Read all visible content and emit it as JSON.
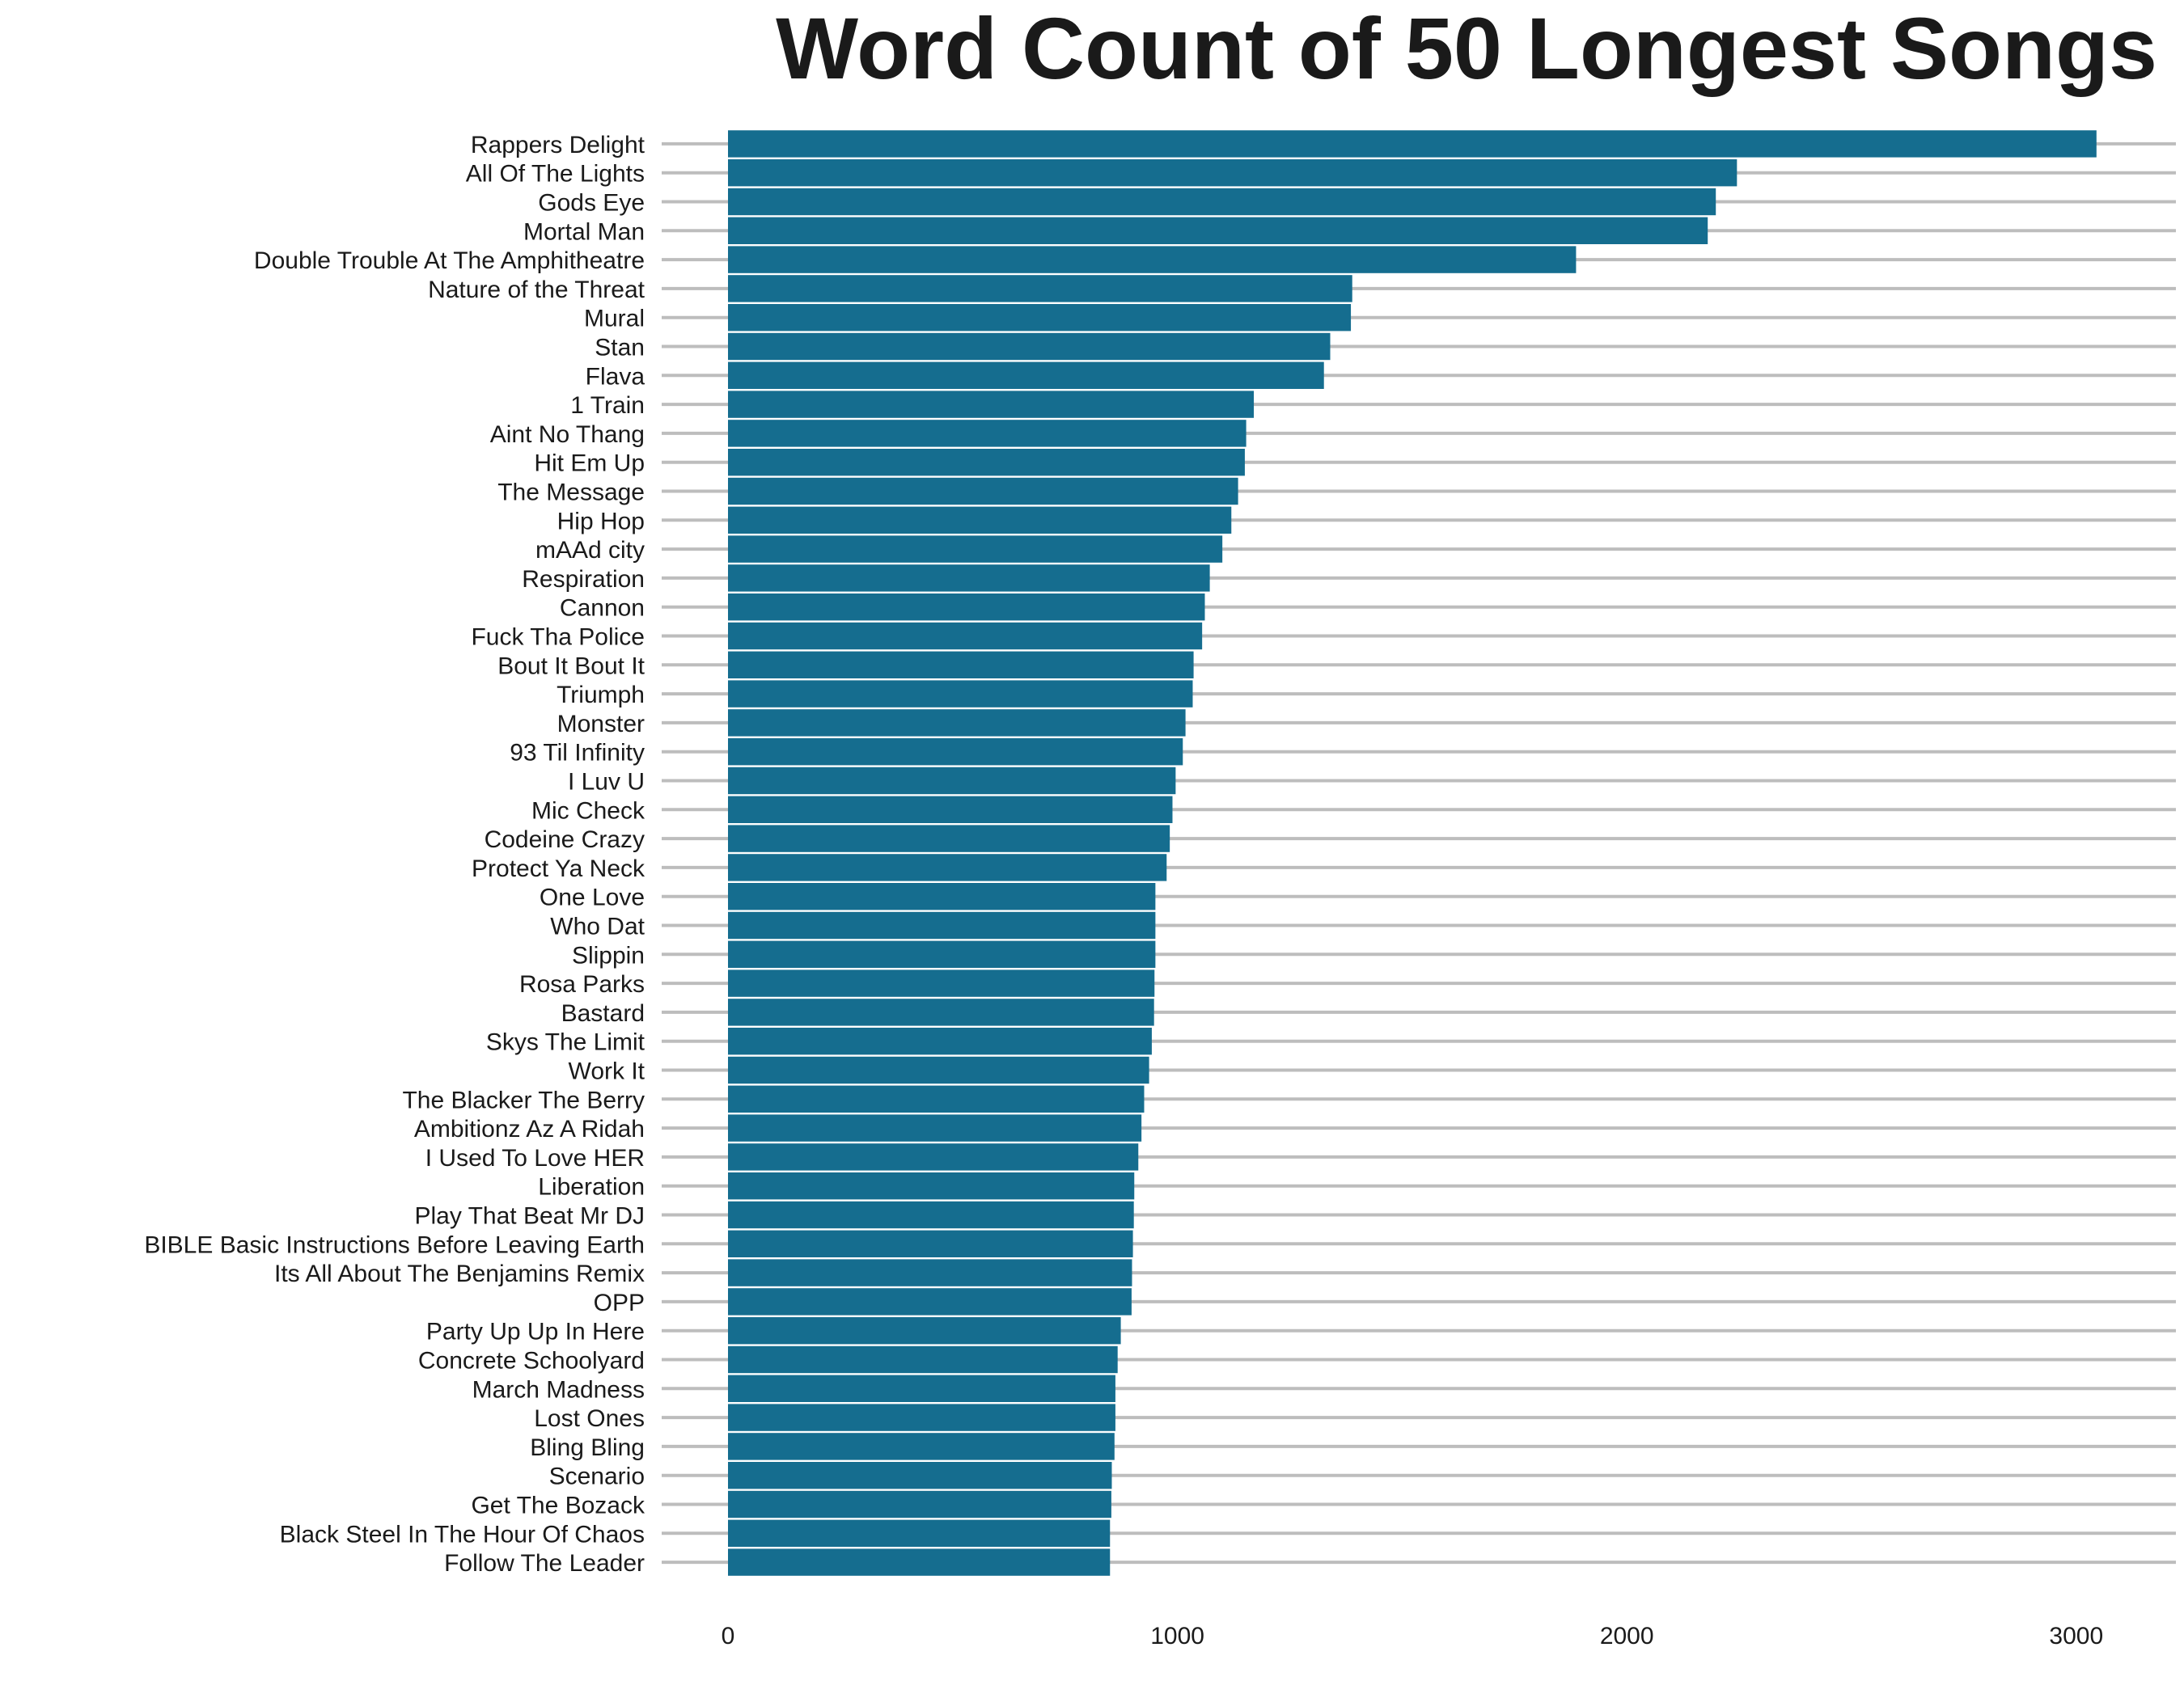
{
  "chart_data": {
    "type": "bar",
    "orientation": "horizontal",
    "title": "Word Count of 50 Longest Songs",
    "xlabel": "",
    "ylabel": "",
    "xlim": [
      0,
      3200
    ],
    "xticks": [
      0,
      1000,
      2000,
      3000
    ],
    "bar_color": "#156d8f",
    "grid": "horizontal lines behind each bar",
    "categories": [
      "Rappers Delight",
      "All Of The Lights",
      "Gods Eye",
      "Mortal Man",
      "Double Trouble At The Amphitheatre",
      "Nature of the Threat",
      "Mural",
      "Stan",
      "Flava",
      "1 Train",
      "Aint No Thang",
      "Hit Em Up",
      "The Message",
      "Hip Hop",
      "mAAd city",
      "Respiration",
      "Cannon",
      "Fuck Tha Police",
      "Bout It Bout It",
      "Triumph",
      "Monster",
      "93 Til Infinity",
      "I Luv U",
      "Mic Check",
      "Codeine Crazy",
      "Protect Ya Neck",
      "One Love",
      "Who Dat",
      "Slippin",
      "Rosa Parks",
      "Bastard",
      "Skys The Limit",
      "Work It",
      "The Blacker The Berry",
      "Ambitionz Az A Ridah",
      "I Used To Love HER",
      "Liberation",
      "Play That Beat Mr DJ",
      "BIBLE Basic Instructions Before Leaving Earth",
      "Its All About The Benjamins Remix",
      "OPP",
      "Party Up Up In Here",
      "Concrete Schoolyard",
      "March Madness",
      "Lost Ones",
      "Bling Bling",
      "Scenario",
      "Get The Bozack",
      "Black Steel In The Hour Of Chaos",
      "Follow The Leader"
    ],
    "values": [
      3045,
      2245,
      2198,
      2180,
      1887,
      1389,
      1386,
      1340,
      1326,
      1170,
      1153,
      1150,
      1135,
      1120,
      1100,
      1072,
      1061,
      1055,
      1036,
      1034,
      1018,
      1012,
      996,
      989,
      983,
      976,
      951,
      951,
      951,
      949,
      948,
      943,
      937,
      926,
      920,
      913,
      904,
      903,
      901,
      899,
      898,
      874,
      867,
      862,
      862,
      860,
      854,
      853,
      850,
      850
    ]
  }
}
